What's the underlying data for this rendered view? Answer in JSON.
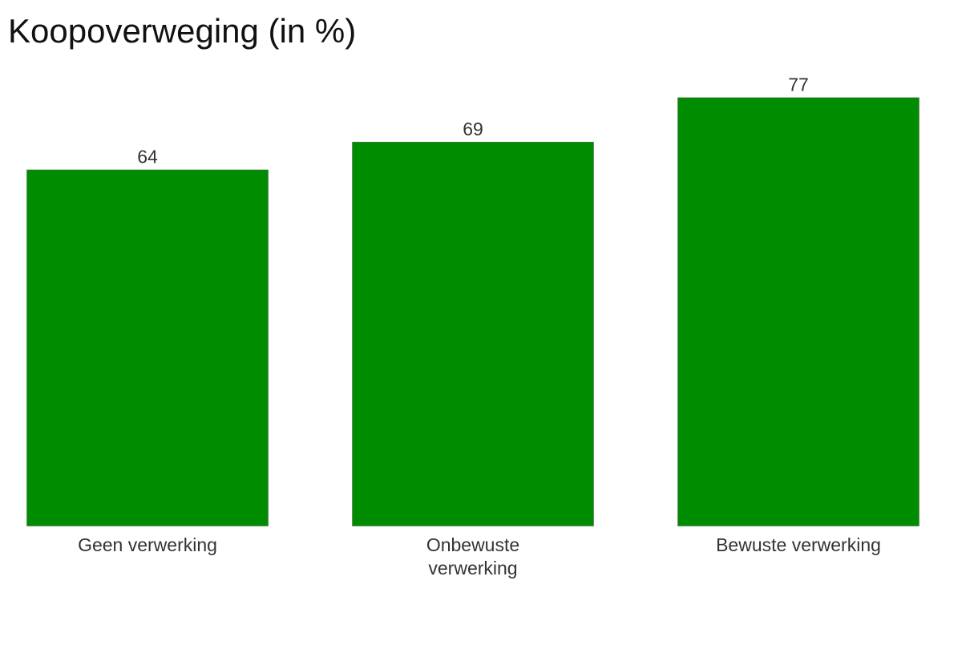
{
  "chart_data": {
    "type": "bar",
    "title": "Koopoverweging (in %)",
    "categories": [
      [
        "Geen verwerking"
      ],
      [
        "Onbewuste",
        "verwerking"
      ],
      [
        "Bewuste verwerking"
      ]
    ],
    "values": [
      64,
      69,
      77
    ],
    "value_labels": [
      "64",
      "69",
      "77"
    ],
    "bar_color": "#008c00",
    "bar_border_color": "#1a7a1a",
    "grid": false,
    "legend": "none",
    "ylim": [
      0,
      100
    ]
  }
}
